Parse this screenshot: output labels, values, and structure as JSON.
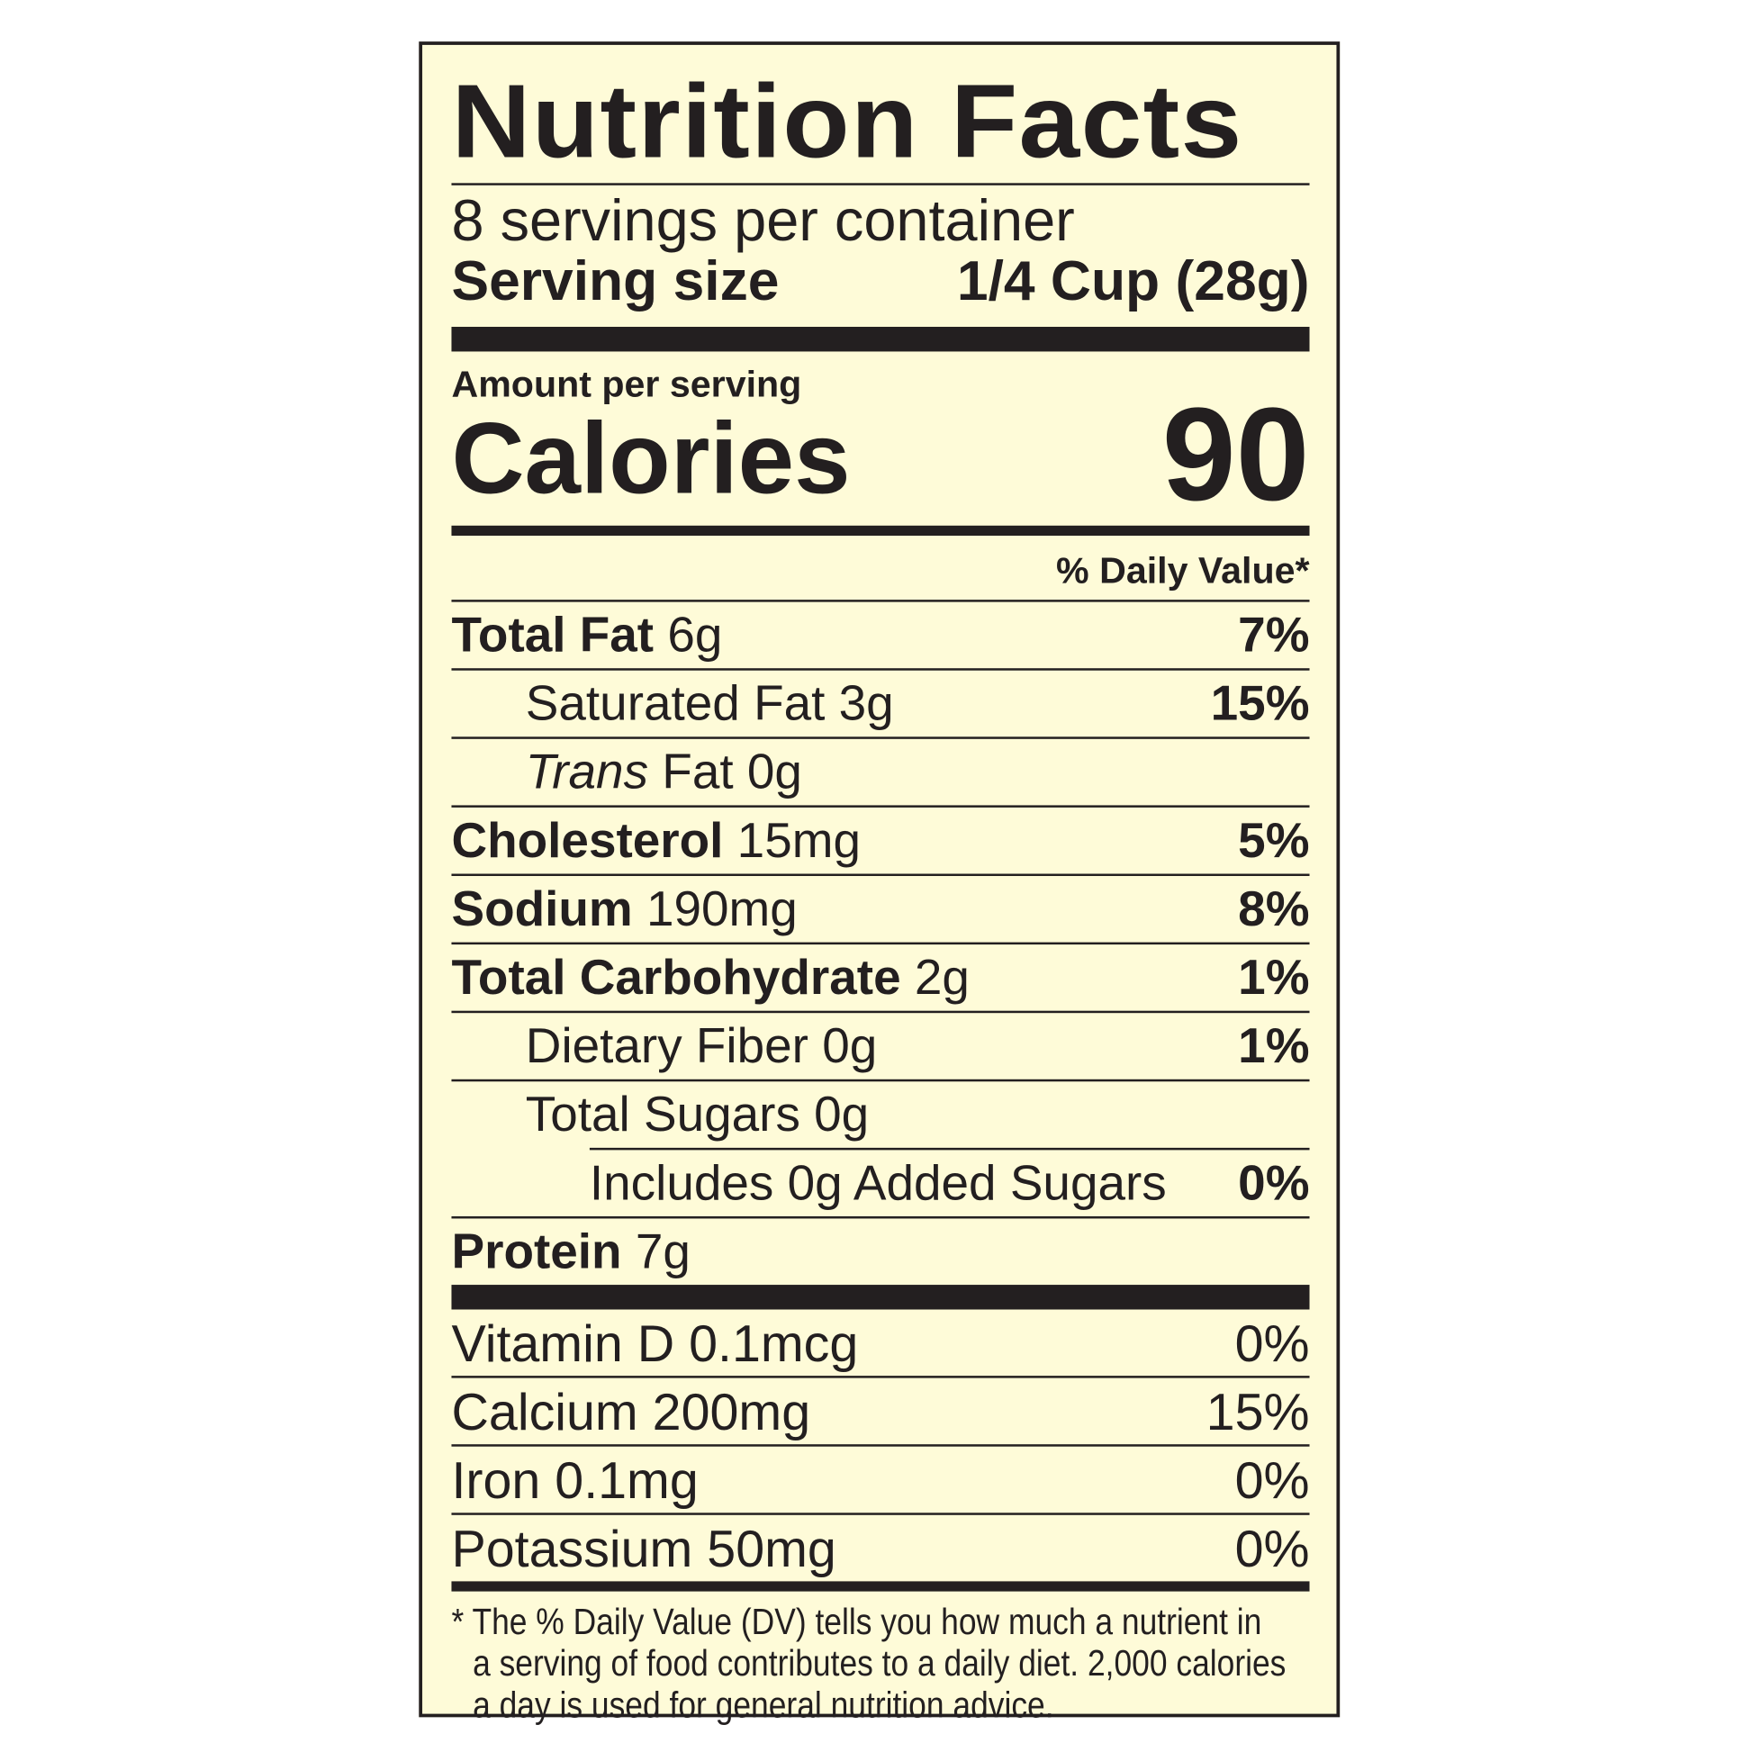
{
  "colors": {
    "background": "#fefbd8",
    "ink": "#231f20"
  },
  "title": "Nutrition Facts",
  "servings_per_container": "8 servings per container",
  "serving_size": {
    "label": "Serving size",
    "value": "1/4 Cup (28g)"
  },
  "amount_per_serving": "Amount per serving",
  "calories": {
    "label": "Calories",
    "value": "90"
  },
  "daily_value_header": "% Daily Value*",
  "nutrients": [
    {
      "name": "Total Fat",
      "amount": "6g",
      "dv": "7%"
    },
    {
      "name": "Saturated Fat",
      "amount": "3g",
      "dv": "15%"
    },
    {
      "name": "Trans",
      "name_rest": "Fat",
      "amount": "0g",
      "dv": ""
    },
    {
      "name": "Cholesterol",
      "amount": "15mg",
      "dv": "5%"
    },
    {
      "name": "Sodium",
      "amount": "190mg",
      "dv": "8%"
    },
    {
      "name": "Total Carbohydrate",
      "amount": "2g",
      "dv": "1%"
    },
    {
      "name": "Dietary Fiber",
      "amount": "0g",
      "dv": "1%"
    },
    {
      "name": "Total Sugars",
      "amount": "0g",
      "dv": ""
    },
    {
      "name": "Includes 0g Added Sugars",
      "amount": "",
      "dv": "0%"
    },
    {
      "name": "Protein",
      "amount": "7g",
      "dv": ""
    }
  ],
  "vitamins": [
    {
      "text": "Vitamin D 0.1mcg",
      "dv": "0%"
    },
    {
      "text": "Calcium 200mg",
      "dv": "15%"
    },
    {
      "text": "Iron 0.1mg",
      "dv": "0%"
    },
    {
      "text": "Potassium 50mg",
      "dv": "0%"
    }
  ],
  "footnote": [
    "* The % Daily Value (DV) tells you how much a nutrient in",
    "a serving of food contributes to a daily diet. 2,000 calories",
    "a day is used for general nutrition advice."
  ]
}
